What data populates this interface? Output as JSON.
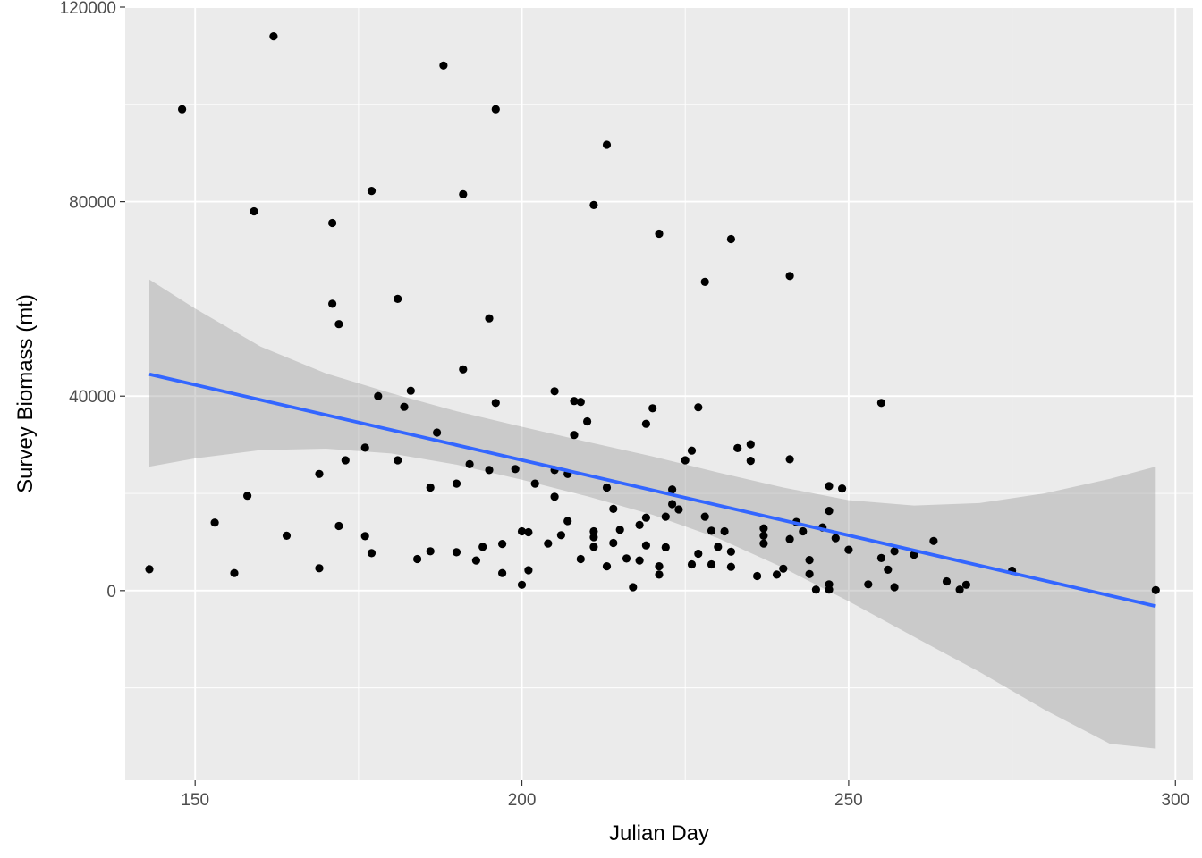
{
  "colors": {
    "panel_background": "#ebebeb",
    "grid_major": "#ffffff",
    "points": "#000000",
    "trend_line": "#3366ff",
    "confidence_band": "#999999",
    "tick_text": "#4d4d4d",
    "tick_marks": "#333333"
  },
  "chart_data": {
    "type": "scatter",
    "title": "",
    "xlabel": "Julian Day",
    "ylabel": "Survey Biomass (mt)",
    "xlim": [
      139.3,
      302.7
    ],
    "ylim": [
      -39000,
      120000
    ],
    "x_ticks": [
      150,
      200,
      250,
      300
    ],
    "x_tick_labels": [
      "150",
      "200",
      "250",
      "300"
    ],
    "y_ticks": [
      0,
      40000,
      80000,
      120000
    ],
    "y_tick_labels": [
      "0",
      "40000",
      "80000",
      "120000"
    ],
    "grid": true,
    "legend": "none",
    "series": [
      {
        "kind": "points",
        "points": [
          [
            143,
            4400
          ],
          [
            148,
            99000
          ],
          [
            153,
            14000
          ],
          [
            156,
            3600
          ],
          [
            158,
            19500
          ],
          [
            159,
            78000
          ],
          [
            162,
            114000
          ],
          [
            164,
            11300
          ],
          [
            169,
            4600
          ],
          [
            169,
            24000
          ],
          [
            171,
            75600
          ],
          [
            171,
            59000
          ],
          [
            172,
            54800
          ],
          [
            172,
            13300
          ],
          [
            173,
            26800
          ],
          [
            176,
            29400
          ],
          [
            176,
            11200
          ],
          [
            177,
            7700
          ],
          [
            177,
            82200
          ],
          [
            178,
            40000
          ],
          [
            181,
            60000
          ],
          [
            181,
            26800
          ],
          [
            182,
            37800
          ],
          [
            183,
            41100
          ],
          [
            184,
            6500
          ],
          [
            186,
            21200
          ],
          [
            186,
            8100
          ],
          [
            187,
            32500
          ],
          [
            188,
            108000
          ],
          [
            190,
            22000
          ],
          [
            190,
            7900
          ],
          [
            191,
            45500
          ],
          [
            191,
            81500
          ],
          [
            192,
            26000
          ],
          [
            193,
            6200
          ],
          [
            194,
            9000
          ],
          [
            195,
            56000
          ],
          [
            195,
            24800
          ],
          [
            196,
            38600
          ],
          [
            196,
            99000
          ],
          [
            197,
            3600
          ],
          [
            197,
            9600
          ],
          [
            199,
            25000
          ],
          [
            200,
            12200
          ],
          [
            200,
            1200
          ],
          [
            201,
            4200
          ],
          [
            201,
            12000
          ],
          [
            202,
            22000
          ],
          [
            204,
            9700
          ],
          [
            205,
            41000
          ],
          [
            205,
            24800
          ],
          [
            205,
            19300
          ],
          [
            206,
            11400
          ],
          [
            207,
            14300
          ],
          [
            207,
            24000
          ],
          [
            208,
            39000
          ],
          [
            208,
            32000
          ],
          [
            209,
            6500
          ],
          [
            209,
            38800
          ],
          [
            210,
            34800
          ],
          [
            211,
            79300
          ],
          [
            211,
            12200
          ],
          [
            211,
            11000
          ],
          [
            211,
            9000
          ],
          [
            213,
            91700
          ],
          [
            213,
            21200
          ],
          [
            213,
            5000
          ],
          [
            214,
            9800
          ],
          [
            214,
            16800
          ],
          [
            215,
            12500
          ],
          [
            216,
            6600
          ],
          [
            217,
            700
          ],
          [
            218,
            6200
          ],
          [
            218,
            13500
          ],
          [
            219,
            15000
          ],
          [
            219,
            9300
          ],
          [
            220,
            37500
          ],
          [
            219,
            34300
          ],
          [
            221,
            73400
          ],
          [
            221,
            3300
          ],
          [
            221,
            5000
          ],
          [
            222,
            8900
          ],
          [
            222,
            15200
          ],
          [
            223,
            20800
          ],
          [
            223,
            17800
          ],
          [
            224,
            16700
          ],
          [
            225,
            26800
          ],
          [
            226,
            28800
          ],
          [
            226,
            5400
          ],
          [
            227,
            37700
          ],
          [
            227,
            7600
          ],
          [
            228,
            63500
          ],
          [
            228,
            15200
          ],
          [
            229,
            5400
          ],
          [
            229,
            12300
          ],
          [
            230,
            9000
          ],
          [
            231,
            12200
          ],
          [
            232,
            72300
          ],
          [
            232,
            4900
          ],
          [
            232,
            8000
          ],
          [
            233,
            29300
          ],
          [
            235,
            30100
          ],
          [
            235,
            26700
          ],
          [
            236,
            3000
          ],
          [
            237,
            11300
          ],
          [
            237,
            12800
          ],
          [
            237,
            9700
          ],
          [
            239,
            3300
          ],
          [
            240,
            4500
          ],
          [
            241,
            64700
          ],
          [
            241,
            27000
          ],
          [
            241,
            10600
          ],
          [
            242,
            14100
          ],
          [
            243,
            12200
          ],
          [
            244,
            6300
          ],
          [
            244,
            3400
          ],
          [
            245,
            200
          ],
          [
            246,
            13000
          ],
          [
            247,
            21500
          ],
          [
            247,
            16400
          ],
          [
            247,
            1300
          ],
          [
            247,
            200
          ],
          [
            248,
            10800
          ],
          [
            249,
            21000
          ],
          [
            250,
            8400
          ],
          [
            253,
            1300
          ],
          [
            255,
            38600
          ],
          [
            255,
            6700
          ],
          [
            256,
            4300
          ],
          [
            257,
            700
          ],
          [
            257,
            8100
          ],
          [
            260,
            7400
          ],
          [
            263,
            10200
          ],
          [
            265,
            1900
          ],
          [
            267,
            200
          ],
          [
            268,
            1200
          ],
          [
            275,
            4100
          ],
          [
            297,
            100
          ]
        ]
      },
      {
        "kind": "linear-fit",
        "line": [
          [
            143,
            44500
          ],
          [
            297,
            -3200
          ]
        ],
        "band_upper": [
          [
            143,
            64000
          ],
          [
            150,
            58000
          ],
          [
            160,
            50200
          ],
          [
            170,
            44700
          ],
          [
            180,
            40600
          ],
          [
            190,
            36900
          ],
          [
            200,
            33700
          ],
          [
            210,
            30600
          ],
          [
            220,
            27600
          ],
          [
            230,
            24300
          ],
          [
            240,
            21200
          ],
          [
            250,
            18600
          ],
          [
            260,
            17500
          ],
          [
            270,
            18000
          ],
          [
            280,
            20000
          ],
          [
            290,
            23000
          ],
          [
            297,
            25500
          ]
        ],
        "band_lower": [
          [
            143,
            25500
          ],
          [
            150,
            27200
          ],
          [
            160,
            28900
          ],
          [
            170,
            29200
          ],
          [
            180,
            28200
          ],
          [
            190,
            25900
          ],
          [
            200,
            22800
          ],
          [
            210,
            19400
          ],
          [
            220,
            15600
          ],
          [
            230,
            10800
          ],
          [
            240,
            4700
          ],
          [
            250,
            -2200
          ],
          [
            260,
            -9500
          ],
          [
            270,
            -16700
          ],
          [
            280,
            -24500
          ],
          [
            290,
            -31500
          ],
          [
            297,
            -32500
          ]
        ]
      }
    ]
  }
}
